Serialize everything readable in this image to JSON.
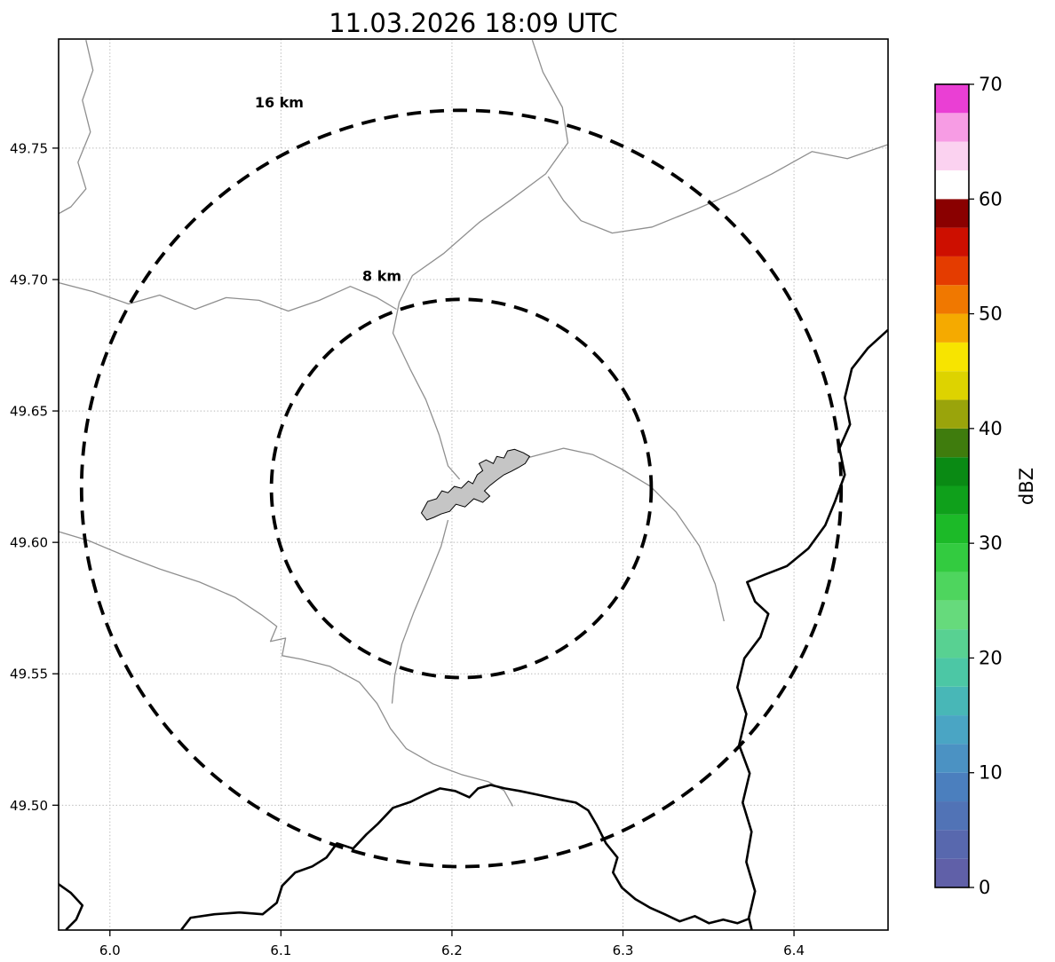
{
  "title": "11.03.2026 18:09 UTC",
  "axes": {
    "x_ticks": [
      "6.0",
      "6.1",
      "6.2",
      "6.3",
      "6.4"
    ],
    "x_tick_values": [
      6.0,
      6.1,
      6.2,
      6.3,
      6.4
    ],
    "y_ticks": [
      "49.50",
      "49.55",
      "49.60",
      "49.65",
      "49.70",
      "49.75"
    ],
    "y_tick_values": [
      49.5,
      49.55,
      49.6,
      49.65,
      49.7,
      49.75
    ],
    "x_domain": [
      5.97,
      6.455
    ],
    "y_domain": [
      49.4525,
      49.7915
    ],
    "grid": true
  },
  "range_rings": {
    "center": {
      "lon": 6.2055,
      "lat": 49.6205
    },
    "rings": [
      {
        "label": "16 km",
        "radius_km": 16,
        "label_lon": 6.099,
        "label_lat": 49.7655
      },
      {
        "label": "8 km",
        "radius_km": 8,
        "label_lon": 6.159,
        "label_lat": 49.6995
      }
    ]
  },
  "colorbar": {
    "label": "dBZ",
    "min": 0,
    "max": 70,
    "ticks": [
      0,
      10,
      20,
      30,
      40,
      50,
      60,
      70
    ],
    "segments": [
      {
        "from": 0,
        "to": 2.5,
        "color": "#6060a8"
      },
      {
        "from": 2.5,
        "to": 5,
        "color": "#5868ae"
      },
      {
        "from": 5,
        "to": 7.5,
        "color": "#5173b6"
      },
      {
        "from": 7.5,
        "to": 10,
        "color": "#4b7fbe"
      },
      {
        "from": 10,
        "to": 12.5,
        "color": "#4b92c3"
      },
      {
        "from": 12.5,
        "to": 15,
        "color": "#4aa5c4"
      },
      {
        "from": 15,
        "to": 17.5,
        "color": "#48b7b7"
      },
      {
        "from": 17.5,
        "to": 20,
        "color": "#4cc7a5"
      },
      {
        "from": 20,
        "to": 22.5,
        "color": "#58d192"
      },
      {
        "from": 22.5,
        "to": 25,
        "color": "#66da7c"
      },
      {
        "from": 25,
        "to": 27.5,
        "color": "#4ed55e"
      },
      {
        "from": 27.5,
        "to": 30,
        "color": "#33cb40"
      },
      {
        "from": 30,
        "to": 32.5,
        "color": "#1cba28"
      },
      {
        "from": 32.5,
        "to": 35,
        "color": "#0fa01b"
      },
      {
        "from": 35,
        "to": 37.5,
        "color": "#0a8a14"
      },
      {
        "from": 37.5,
        "to": 40,
        "color": "#3f7c0d"
      },
      {
        "from": 40,
        "to": 42.5,
        "color": "#9aa40b"
      },
      {
        "from": 42.5,
        "to": 45,
        "color": "#ddd300"
      },
      {
        "from": 45,
        "to": 47.5,
        "color": "#f7e400"
      },
      {
        "from": 47.5,
        "to": 50,
        "color": "#f5aa00"
      },
      {
        "from": 50,
        "to": 52.5,
        "color": "#f07800"
      },
      {
        "from": 52.5,
        "to": 55,
        "color": "#e43c00"
      },
      {
        "from": 55,
        "to": 57.5,
        "color": "#cd0f00"
      },
      {
        "from": 57.5,
        "to": 60,
        "color": "#8a0000"
      },
      {
        "from": 60,
        "to": 62.5,
        "color": "#ffffff"
      },
      {
        "from": 62.5,
        "to": 65,
        "color": "#fbd2f0"
      },
      {
        "from": 65,
        "to": 67.5,
        "color": "#f79ce4"
      },
      {
        "from": 67.5,
        "to": 70,
        "color": "#ea3fd4"
      }
    ]
  },
  "map_features": {
    "city_polygon": {
      "name": "city-area",
      "fill": "#c5c5c5",
      "points": [
        [
          6.1821,
          49.6112
        ],
        [
          6.1858,
          49.6156
        ],
        [
          6.191,
          49.6166
        ],
        [
          6.1941,
          49.6196
        ],
        [
          6.1977,
          49.6189
        ],
        [
          6.2014,
          49.6213
        ],
        [
          6.2055,
          49.6206
        ],
        [
          6.2096,
          49.6233
        ],
        [
          6.2122,
          49.6223
        ],
        [
          6.2148,
          49.6257
        ],
        [
          6.218,
          49.6273
        ],
        [
          6.2159,
          49.63
        ],
        [
          6.22,
          49.6314
        ],
        [
          6.2242,
          49.63
        ],
        [
          6.2262,
          49.6327
        ],
        [
          6.2304,
          49.6321
        ],
        [
          6.2325,
          49.6348
        ],
        [
          6.2366,
          49.6354
        ],
        [
          6.2418,
          49.6341
        ],
        [
          6.2454,
          49.6327
        ],
        [
          6.2428,
          49.63
        ],
        [
          6.2387,
          49.6284
        ],
        [
          6.2346,
          49.627
        ],
        [
          6.2304,
          49.6257
        ],
        [
          6.2262,
          49.6237
        ],
        [
          6.2221,
          49.6216
        ],
        [
          6.219,
          49.6196
        ],
        [
          6.2221,
          49.6176
        ],
        [
          6.218,
          49.6152
        ],
        [
          6.2128,
          49.6166
        ],
        [
          6.2076,
          49.6135
        ],
        [
          6.2024,
          49.6145
        ],
        [
          6.1987,
          49.6118
        ],
        [
          6.1936,
          49.6108
        ],
        [
          6.1894,
          49.6095
        ],
        [
          6.1853,
          49.6085
        ]
      ]
    },
    "rivers": [
      {
        "name": "river-north",
        "points": [
          [
            6.247,
            49.7911
          ],
          [
            6.2532,
            49.7789
          ],
          [
            6.2646,
            49.7655
          ],
          [
            6.2678,
            49.752
          ],
          [
            6.2548,
            49.7402
          ],
          [
            6.234,
            49.7301
          ],
          [
            6.2159,
            49.7217
          ],
          [
            6.1951,
            49.7099
          ],
          [
            6.1769,
            49.7015
          ],
          [
            6.1692,
            49.6914
          ],
          [
            6.1655,
            49.6796
          ],
          [
            6.1754,
            49.6661
          ],
          [
            6.1847,
            49.6543
          ],
          [
            6.1925,
            49.6409
          ],
          [
            6.1977,
            49.6291
          ],
          [
            6.2045,
            49.624
          ]
        ]
      },
      {
        "name": "river-northeast",
        "points": [
          [
            6.4546,
            49.7513
          ],
          [
            6.4312,
            49.746
          ],
          [
            6.4105,
            49.7487
          ],
          [
            6.3871,
            49.7402
          ],
          [
            6.3664,
            49.7335
          ],
          [
            6.343,
            49.7268
          ],
          [
            6.3171,
            49.72
          ],
          [
            6.2937,
            49.7177
          ],
          [
            6.2755,
            49.7224
          ],
          [
            6.2652,
            49.7301
          ],
          [
            6.2563,
            49.7392
          ]
        ]
      },
      {
        "name": "river-northwest",
        "points": [
          [
            5.986,
            49.7911
          ],
          [
            5.9901,
            49.7796
          ],
          [
            5.9839,
            49.7682
          ],
          [
            5.9886,
            49.7561
          ],
          [
            5.9813,
            49.7446
          ],
          [
            5.986,
            49.7345
          ],
          [
            5.9772,
            49.7277
          ],
          [
            5.9699,
            49.725
          ]
        ]
      },
      {
        "name": "stream-mid-west",
        "points": [
          [
            5.9699,
            49.6988
          ],
          [
            5.9901,
            49.6954
          ],
          [
            6.0109,
            49.6907
          ],
          [
            6.0291,
            49.6941
          ],
          [
            6.0498,
            49.6887
          ],
          [
            6.068,
            49.6931
          ],
          [
            6.0872,
            49.6921
          ],
          [
            6.1043,
            49.688
          ],
          [
            6.1225,
            49.6921
          ],
          [
            6.1406,
            49.6974
          ],
          [
            6.1562,
            49.6931
          ],
          [
            6.1676,
            49.6887
          ]
        ]
      },
      {
        "name": "river-southwest",
        "points": [
          [
            5.9699,
            49.6041
          ],
          [
            5.9875,
            49.6007
          ],
          [
            6.0083,
            49.595
          ],
          [
            6.0291,
            49.5899
          ],
          [
            6.0524,
            49.5849
          ],
          [
            6.0732,
            49.5791
          ],
          [
            6.0887,
            49.5724
          ],
          [
            6.0976,
            49.568
          ],
          [
            6.0939,
            49.5623
          ],
          [
            6.1027,
            49.5636
          ],
          [
            6.1007,
            49.5569
          ],
          [
            6.1121,
            49.5555
          ],
          [
            6.1287,
            49.5528
          ],
          [
            6.1458,
            49.5468
          ],
          [
            6.1562,
            49.5387
          ],
          [
            6.164,
            49.5292
          ],
          [
            6.1733,
            49.5215
          ],
          [
            6.1889,
            49.5157
          ],
          [
            6.2055,
            49.5117
          ],
          [
            6.2211,
            49.509
          ],
          [
            6.2304,
            49.5056
          ],
          [
            6.2356,
            49.4996
          ]
        ]
      },
      {
        "name": "river-south-of-city",
        "points": [
          [
            6.1977,
            49.6085
          ],
          [
            6.1936,
            49.5984
          ],
          [
            6.1863,
            49.5866
          ],
          [
            6.1775,
            49.5731
          ],
          [
            6.1707,
            49.5613
          ],
          [
            6.1666,
            49.5495
          ],
          [
            6.165,
            49.5387
          ]
        ]
      },
      {
        "name": "river-east-of-city",
        "points": [
          [
            6.2454,
            49.6324
          ],
          [
            6.2652,
            49.6358
          ],
          [
            6.2823,
            49.6334
          ],
          [
            6.2989,
            49.628
          ],
          [
            6.3161,
            49.6213
          ],
          [
            6.3311,
            49.6115
          ],
          [
            6.3446,
            49.5987
          ],
          [
            6.3539,
            49.5842
          ],
          [
            6.3591,
            49.57
          ]
        ]
      }
    ],
    "borders": [
      {
        "name": "border-east",
        "points": [
          [
            6.4546,
            49.6806
          ],
          [
            6.4432,
            49.6739
          ],
          [
            6.4338,
            49.6661
          ],
          [
            6.4297,
            49.655
          ],
          [
            6.4328,
            49.6449
          ],
          [
            6.4266,
            49.6358
          ],
          [
            6.4297,
            49.6257
          ],
          [
            6.424,
            49.6156
          ],
          [
            6.4183,
            49.6065
          ],
          [
            6.4084,
            49.5977
          ],
          [
            6.3959,
            49.591
          ],
          [
            6.3824,
            49.5876
          ],
          [
            6.3726,
            49.5849
          ],
          [
            6.3772,
            49.5775
          ],
          [
            6.385,
            49.5728
          ],
          [
            6.3804,
            49.564
          ],
          [
            6.371,
            49.5559
          ],
          [
            6.3669,
            49.5448
          ],
          [
            6.3721,
            49.5347
          ],
          [
            6.3679,
            49.5229
          ],
          [
            6.3741,
            49.5121
          ],
          [
            6.37,
            49.501
          ],
          [
            6.3752,
            49.4899
          ],
          [
            6.3721,
            49.4784
          ],
          [
            6.3772,
            49.4673
          ],
          [
            6.3736,
            49.4572
          ],
          [
            6.3752,
            49.4528
          ]
        ]
      },
      {
        "name": "border-south",
        "points": [
          [
            6.042,
            49.4528
          ],
          [
            6.0472,
            49.4572
          ],
          [
            6.0612,
            49.4585
          ],
          [
            6.0758,
            49.4592
          ],
          [
            6.0893,
            49.4585
          ],
          [
            6.0976,
            49.4629
          ],
          [
            6.1007,
            49.4693
          ],
          [
            6.1084,
            49.4744
          ],
          [
            6.1183,
            49.4767
          ],
          [
            6.1266,
            49.4801
          ],
          [
            6.1328,
            49.4855
          ],
          [
            6.1422,
            49.4835
          ],
          [
            6.15,
            49.4889
          ],
          [
            6.1567,
            49.4929
          ],
          [
            6.1655,
            49.499
          ],
          [
            6.1759,
            49.5013
          ],
          [
            6.1842,
            49.504
          ],
          [
            6.193,
            49.5064
          ],
          [
            6.2019,
            49.5054
          ],
          [
            6.2102,
            49.503
          ],
          [
            6.2153,
            49.5064
          ],
          [
            6.2226,
            49.5077
          ],
          [
            6.2309,
            49.5064
          ],
          [
            6.2397,
            49.5054
          ],
          [
            6.2501,
            49.504
          ],
          [
            6.262,
            49.5023
          ],
          [
            6.2724,
            49.501
          ],
          [
            6.2797,
            49.498
          ],
          [
            6.2849,
            49.4922
          ],
          [
            6.2901,
            49.4855
          ],
          [
            6.2968,
            49.4801
          ],
          [
            6.2942,
            49.4744
          ],
          [
            6.2994,
            49.4686
          ],
          [
            6.3072,
            49.4643
          ],
          [
            6.3161,
            49.4609
          ],
          [
            6.3244,
            49.4585
          ],
          [
            6.3332,
            49.4558
          ],
          [
            6.342,
            49.4578
          ],
          [
            6.3503,
            49.4551
          ],
          [
            6.3586,
            49.4565
          ],
          [
            6.3669,
            49.4551
          ],
          [
            6.3736,
            49.4568
          ]
        ]
      },
      {
        "name": "border-southwest-corner",
        "points": [
          [
            5.9699,
            49.47
          ],
          [
            5.9772,
            49.4666
          ],
          [
            5.9839,
            49.4619
          ],
          [
            5.9803,
            49.4565
          ],
          [
            5.9746,
            49.4528
          ]
        ]
      }
    ]
  }
}
